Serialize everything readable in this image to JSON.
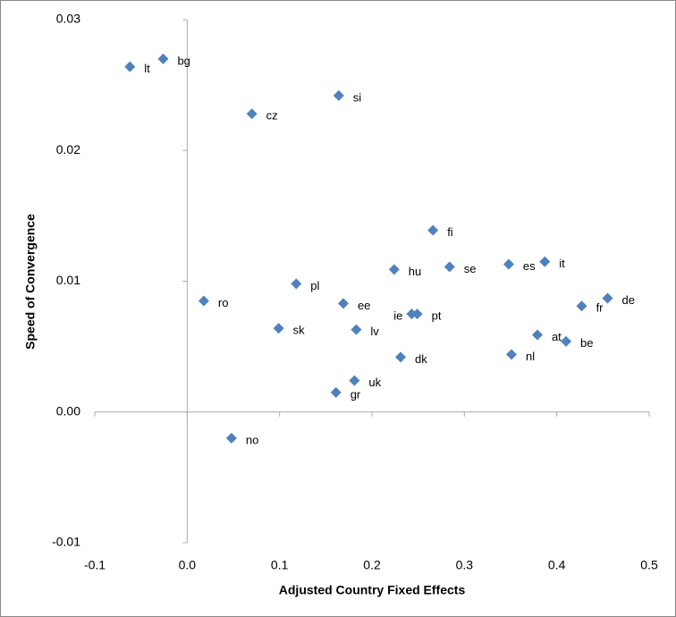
{
  "chart_data": {
    "type": "scatter",
    "x_label": "Adjusted Country Fixed Effects",
    "y_label": "Speed  of Convergence",
    "color": "#4f81bd",
    "labels": [
      "lt",
      "bg",
      "si",
      "cz",
      "fi",
      "es",
      "it",
      "hu",
      "se",
      "pl",
      "ro",
      "ee",
      "ie",
      "pt",
      "de",
      "fr",
      "sk",
      "lv",
      "at",
      "be",
      "dk",
      "nl",
      "uk",
      "gr",
      "no"
    ],
    "x": [
      -0.062,
      -0.026,
      0.164,
      0.07,
      0.266,
      0.348,
      0.387,
      0.224,
      0.284,
      0.118,
      0.018,
      0.169,
      0.243,
      0.249,
      0.455,
      0.427,
      0.099,
      0.183,
      0.379,
      0.41,
      0.231,
      0.351,
      0.181,
      0.161,
      0.048
    ],
    "values": [
      0.0264,
      0.027,
      0.0242,
      0.0228,
      0.0139,
      0.0113,
      0.0115,
      0.0109,
      0.0111,
      0.0098,
      0.0085,
      0.0083,
      0.0075,
      0.0075,
      0.0087,
      0.0081,
      0.0064,
      0.0063,
      0.0059,
      0.0054,
      0.0042,
      0.0044,
      0.0024,
      0.0015,
      -0.002
    ],
    "xlim": [
      -0.1,
      0.5
    ],
    "ylim": [
      -0.01,
      0.03
    ],
    "xticks": [
      -0.1,
      {
        "value": 0,
        "label": "0.0"
      },
      0.1,
      0.2,
      0.3,
      0.4,
      0.5
    ],
    "yticks": [
      -0.01,
      {
        "value": 0,
        "label": "0.00"
      },
      0.01,
      0.02,
      0.03
    ]
  }
}
